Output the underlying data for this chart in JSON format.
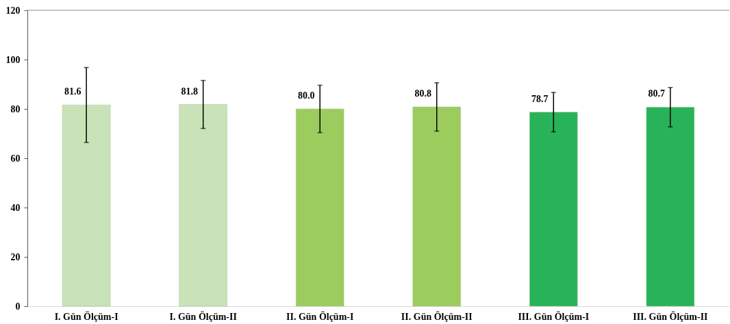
{
  "chart_data": {
    "type": "bar",
    "categories": [
      "I. Gün Ölçüm-I",
      "I. Gün Ölçüm-II",
      "II. Gün Ölçüm-I",
      "II. Gün Ölçüm-II",
      "III. Gün Ölçüm-I",
      "III. Gün Ölçüm-II"
    ],
    "values": [
      81.6,
      81.8,
      80.0,
      80.8,
      78.7,
      80.7
    ],
    "errors": [
      15.2,
      9.7,
      9.6,
      9.8,
      8.0,
      8.0
    ],
    "colors": [
      "#c9e2b8",
      "#c9e2b8",
      "#9ccc5e",
      "#9ccc5e",
      "#28b35a",
      "#28b35a"
    ],
    "ylim": [
      0,
      120
    ],
    "yticks": [
      0,
      20,
      40,
      60,
      80,
      100,
      120
    ],
    "value_labels": [
      "81.6",
      "81.8",
      "80.0",
      "80.8",
      "78.7",
      "80.7"
    ],
    "grid": false
  }
}
